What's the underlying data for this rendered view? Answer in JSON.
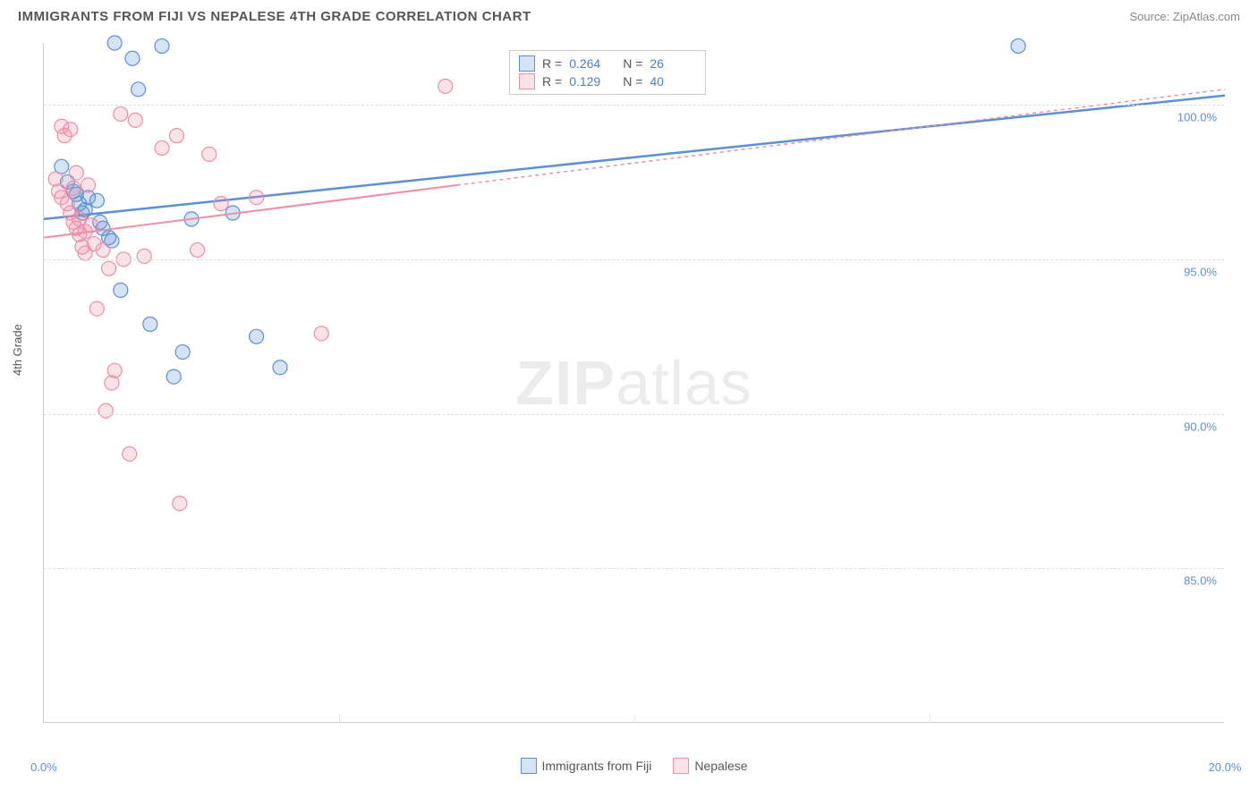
{
  "header": {
    "title": "IMMIGRANTS FROM FIJI VS NEPALESE 4TH GRADE CORRELATION CHART",
    "source_prefix": "Source: ",
    "source": "ZipAtlas.com"
  },
  "ylabel": "4th Grade",
  "watermark_bold": "ZIP",
  "watermark_light": "atlas",
  "chart": {
    "type": "scatter",
    "xlim": [
      0,
      20
    ],
    "ylim": [
      80,
      102
    ],
    "yticks": [
      85,
      90,
      95,
      100
    ],
    "ytick_labels": [
      "85.0%",
      "90.0%",
      "95.0%",
      "100.0%"
    ],
    "xticks": [
      0,
      20
    ],
    "xtick_labels": [
      "0.0%",
      "20.0%"
    ],
    "xtick_minor": [
      5,
      10,
      15
    ],
    "grid_color": "#dddddd",
    "axis_color": "#cccccc",
    "tick_label_color": "#5b8fd6",
    "series": [
      {
        "name": "Immigrants from Fiji",
        "stroke": "#5b8fd6",
        "fill": "rgba(91,143,214,0.25)",
        "marker_r": 8,
        "r_stat": "0.264",
        "n_stat": "26",
        "trend": {
          "x1": 0,
          "y1": 96.3,
          "x2": 20,
          "y2": 100.3,
          "width": 2.5,
          "dash": "none",
          "ext_dash": "none"
        },
        "points": [
          [
            0.3,
            98.0
          ],
          [
            0.4,
            97.5
          ],
          [
            0.5,
            97.2
          ],
          [
            0.55,
            97.1
          ],
          [
            0.6,
            96.8
          ],
          [
            0.65,
            96.5
          ],
          [
            0.7,
            96.6
          ],
          [
            0.75,
            97.0
          ],
          [
            0.9,
            96.9
          ],
          [
            1.0,
            96.0
          ],
          [
            1.1,
            95.7
          ],
          [
            1.15,
            95.6
          ],
          [
            1.2,
            102.0
          ],
          [
            1.5,
            101.5
          ],
          [
            1.6,
            100.5
          ],
          [
            1.8,
            92.9
          ],
          [
            2.0,
            101.9
          ],
          [
            2.2,
            91.2
          ],
          [
            2.35,
            92.0
          ],
          [
            2.5,
            96.3
          ],
          [
            3.2,
            96.5
          ],
          [
            3.6,
            92.5
          ],
          [
            4.0,
            91.5
          ],
          [
            16.5,
            101.9
          ],
          [
            1.3,
            94.0
          ],
          [
            0.95,
            96.2
          ]
        ]
      },
      {
        "name": "Nepalese",
        "stroke": "#ec8fa4",
        "fill": "rgba(236,143,164,0.25)",
        "marker_r": 8,
        "r_stat": "0.129",
        "n_stat": "40",
        "trend": {
          "x1": 0,
          "y1": 95.7,
          "x2": 7,
          "y2": 97.4,
          "width": 2,
          "dash": "none",
          "ext_x2": 20,
          "ext_y2": 100.5,
          "ext_dash": "4,4"
        },
        "points": [
          [
            0.2,
            97.6
          ],
          [
            0.25,
            97.2
          ],
          [
            0.3,
            97.0
          ],
          [
            0.3,
            99.3
          ],
          [
            0.35,
            99.0
          ],
          [
            0.4,
            96.8
          ],
          [
            0.45,
            96.5
          ],
          [
            0.5,
            97.3
          ],
          [
            0.5,
            96.2
          ],
          [
            0.55,
            96.0
          ],
          [
            0.6,
            96.3
          ],
          [
            0.6,
            95.8
          ],
          [
            0.65,
            95.4
          ],
          [
            0.7,
            95.9
          ],
          [
            0.7,
            95.2
          ],
          [
            0.75,
            97.4
          ],
          [
            0.8,
            96.1
          ],
          [
            0.85,
            95.5
          ],
          [
            0.9,
            93.4
          ],
          [
            1.0,
            95.3
          ],
          [
            1.05,
            90.1
          ],
          [
            1.1,
            94.7
          ],
          [
            1.15,
            91.0
          ],
          [
            1.2,
            91.4
          ],
          [
            1.3,
            99.7
          ],
          [
            1.35,
            95.0
          ],
          [
            1.45,
            88.7
          ],
          [
            1.55,
            99.5
          ],
          [
            1.7,
            95.1
          ],
          [
            2.0,
            98.6
          ],
          [
            2.25,
            99.0
          ],
          [
            2.3,
            87.1
          ],
          [
            2.6,
            95.3
          ],
          [
            2.8,
            98.4
          ],
          [
            3.0,
            96.8
          ],
          [
            3.6,
            97.0
          ],
          [
            4.7,
            92.6
          ],
          [
            6.8,
            100.6
          ],
          [
            0.45,
            99.2
          ],
          [
            0.55,
            97.8
          ]
        ]
      }
    ]
  },
  "legend_box": {
    "r_label": "R =",
    "n_label": "N ="
  },
  "bottom_legend": [
    {
      "label": "Immigrants from Fiji",
      "fill": "rgba(91,143,214,0.25)",
      "stroke": "#5b8fd6"
    },
    {
      "label": "Nepalese",
      "fill": "rgba(236,143,164,0.25)",
      "stroke": "#ec8fa4"
    }
  ]
}
